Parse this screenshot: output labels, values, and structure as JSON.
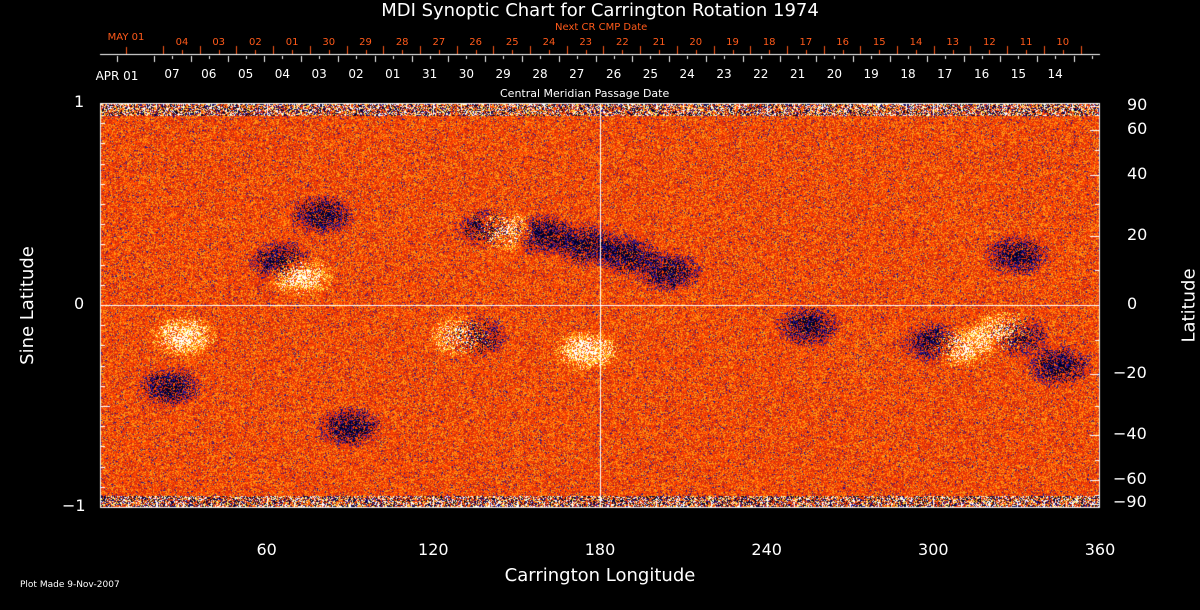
{
  "chart_data": {
    "type": "heatmap",
    "title": "MDI Synoptic Chart for Carrington Rotation 1974",
    "xlabel": "Carrington Longitude",
    "ylabel_left": "Sine Latitude",
    "ylabel_right": "Latitude",
    "xlim": [
      0,
      360
    ],
    "ylim": [
      -1,
      1
    ],
    "x_ticks": [
      "60",
      "120",
      "180",
      "240",
      "300",
      "360"
    ],
    "y_ticks_left": [
      "1",
      "0",
      "−1"
    ],
    "y_ticks_right": [
      "90",
      "60",
      "40",
      "20",
      "0",
      "−20",
      "−40",
      "−60",
      "−90"
    ],
    "top_axis_label": "Central Meridian Passage Date",
    "top_axis_start": "APR 01",
    "top_axis_dates": [
      "07",
      "06",
      "05",
      "04",
      "03",
      "02",
      "01",
      "31",
      "30",
      "29",
      "28",
      "27",
      "26",
      "25",
      "24",
      "23",
      "22",
      "21",
      "20",
      "19",
      "18",
      "17",
      "16",
      "15",
      "14"
    ],
    "next_axis_label": "Next CR CMP Date",
    "next_axis_start": "MAY 01",
    "next_axis_dates": [
      "04",
      "03",
      "02",
      "01",
      "30",
      "29",
      "28",
      "27",
      "26",
      "25",
      "24",
      "23",
      "22",
      "21",
      "20",
      "19",
      "18",
      "17",
      "16",
      "15",
      "14",
      "13",
      "12",
      "11",
      "10"
    ],
    "colors": {
      "background_field": "#ff4500",
      "positive": "#ffffff",
      "negative": "#000040",
      "accent": "#ff5a1a"
    }
  },
  "footer": {
    "plot_made": "Plot Made  9-Nov-2007"
  }
}
